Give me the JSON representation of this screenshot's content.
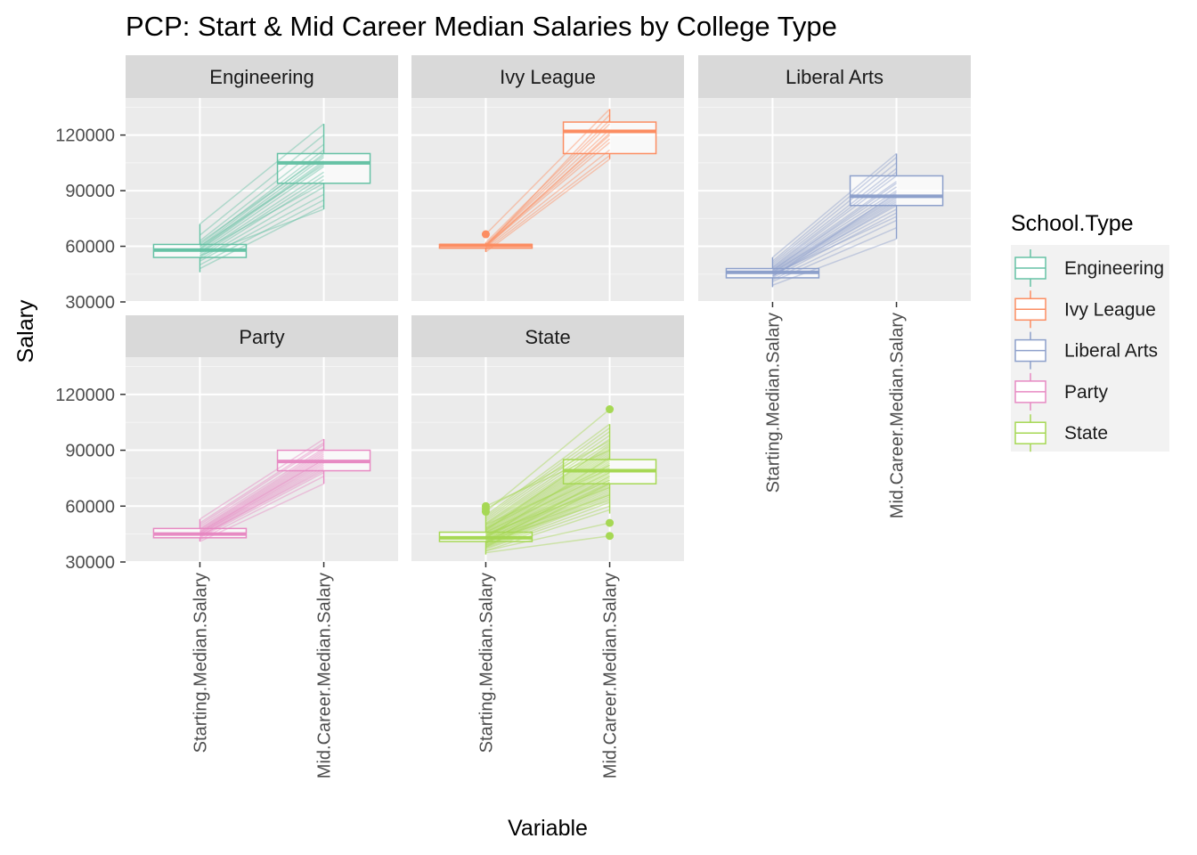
{
  "chart_data": {
    "type": "boxplot-parallel-coordinates",
    "title": "PCP: Start & Mid Career Median Salaries by College Type",
    "xlabel": "Variable",
    "ylabel": "Salary",
    "categories": [
      "Starting.Median.Salary",
      "Mid.Career.Median.Salary"
    ],
    "y_ticks": [
      30000,
      60000,
      90000,
      120000
    ],
    "ylim": [
      30000,
      140000
    ],
    "legend": {
      "title": "School.Type",
      "position": "right",
      "items": [
        {
          "label": "Engineering",
          "color": "#66C2A5"
        },
        {
          "label": "Ivy League",
          "color": "#FC8D62"
        },
        {
          "label": "Liberal Arts",
          "color": "#8DA0CB"
        },
        {
          "label": "Party",
          "color": "#E78AC3"
        },
        {
          "label": "State",
          "color": "#A6D854"
        }
      ]
    },
    "facets": [
      {
        "name": "Engineering",
        "color": "#66C2A5",
        "boxes": [
          {
            "q1": 54000,
            "median": 58000,
            "q3": 61000,
            "low": 46000,
            "high": 72000,
            "outliers": []
          },
          {
            "q1": 94000,
            "median": 105000,
            "q3": 110000,
            "low": 80000,
            "high": 126000,
            "outliers": []
          }
        ],
        "lines": [
          [
            48000,
            82000
          ],
          [
            50000,
            85000
          ],
          [
            52000,
            88000
          ],
          [
            53000,
            92000
          ],
          [
            54000,
            96000
          ],
          [
            55000,
            98000
          ],
          [
            56000,
            100000
          ],
          [
            57000,
            103000
          ],
          [
            58000,
            105000
          ],
          [
            58500,
            106000
          ],
          [
            59000,
            108000
          ],
          [
            60000,
            110000
          ],
          [
            61000,
            112000
          ],
          [
            63000,
            115000
          ],
          [
            66000,
            120000
          ],
          [
            72000,
            126000
          ],
          [
            55000,
            80000
          ],
          [
            57000,
            94000
          ],
          [
            60000,
            104000
          ],
          [
            62000,
            109000
          ]
        ]
      },
      {
        "name": "Ivy League",
        "color": "#FC8D62",
        "boxes": [
          {
            "q1": 59000,
            "median": 60500,
            "q3": 61000,
            "low": 57000,
            "high": 62000,
            "outliers": [
              66500
            ]
          },
          {
            "q1": 110000,
            "median": 122000,
            "q3": 127000,
            "low": 107000,
            "high": 134000,
            "outliers": []
          }
        ],
        "lines": [
          [
            57000,
            107000
          ],
          [
            58000,
            109000
          ],
          [
            59000,
            112000
          ],
          [
            60000,
            116000
          ],
          [
            60500,
            120000
          ],
          [
            61000,
            123000
          ],
          [
            61000,
            126000
          ],
          [
            62000,
            128000
          ],
          [
            60000,
            131000
          ],
          [
            66500,
            134000
          ],
          [
            59500,
            121000
          ],
          [
            60500,
            118000
          ]
        ]
      },
      {
        "name": "Liberal Arts",
        "color": "#8DA0CB",
        "boxes": [
          {
            "q1": 43000,
            "median": 46000,
            "q3": 48000,
            "low": 38000,
            "high": 54000,
            "outliers": []
          },
          {
            "q1": 82000,
            "median": 87000,
            "q3": 98000,
            "low": 64000,
            "high": 110000,
            "outliers": []
          }
        ],
        "lines": [
          [
            39000,
            64000
          ],
          [
            41000,
            70000
          ],
          [
            42000,
            74000
          ],
          [
            43000,
            78000
          ],
          [
            44000,
            80000
          ],
          [
            44500,
            82000
          ],
          [
            45000,
            84000
          ],
          [
            45500,
            85000
          ],
          [
            46000,
            86000
          ],
          [
            46000,
            87000
          ],
          [
            46500,
            88000
          ],
          [
            47000,
            90000
          ],
          [
            47500,
            92000
          ],
          [
            48000,
            95000
          ],
          [
            48500,
            98000
          ],
          [
            49000,
            100000
          ],
          [
            50000,
            102000
          ],
          [
            51000,
            105000
          ],
          [
            52000,
            108000
          ],
          [
            54000,
            110000
          ],
          [
            45000,
            76000
          ],
          [
            43500,
            89000
          ],
          [
            47000,
            94000
          ],
          [
            44000,
            83000
          ]
        ]
      },
      {
        "name": "Party",
        "color": "#E78AC3",
        "boxes": [
          {
            "q1": 43000,
            "median": 45000,
            "q3": 48000,
            "low": 41000,
            "high": 53000,
            "outliers": []
          },
          {
            "q1": 79000,
            "median": 84000,
            "q3": 90000,
            "low": 72000,
            "high": 96000,
            "outliers": []
          }
        ],
        "lines": [
          [
            41000,
            72000
          ],
          [
            42000,
            76000
          ],
          [
            43000,
            78000
          ],
          [
            43500,
            80000
          ],
          [
            44000,
            81000
          ],
          [
            44500,
            82000
          ],
          [
            45000,
            83000
          ],
          [
            45000,
            84000
          ],
          [
            45500,
            85000
          ],
          [
            46000,
            86000
          ],
          [
            46500,
            87000
          ],
          [
            47000,
            88000
          ],
          [
            47500,
            89000
          ],
          [
            48000,
            90000
          ],
          [
            49000,
            91000
          ],
          [
            50000,
            93000
          ],
          [
            51000,
            94000
          ],
          [
            53000,
            96000
          ],
          [
            44000,
            79000
          ],
          [
            46000,
            85000
          ]
        ]
      },
      {
        "name": "State",
        "color": "#A6D854",
        "boxes": [
          {
            "q1": 41000,
            "median": 43000,
            "q3": 46000,
            "low": 34000,
            "high": 55000,
            "outliers": [
              57000,
              58500,
              60000
            ]
          },
          {
            "q1": 72000,
            "median": 79000,
            "q3": 85000,
            "low": 56000,
            "high": 104000,
            "outliers": [
              112000,
              51000,
              44000
            ]
          }
        ],
        "lines": [
          [
            35000,
            44000
          ],
          [
            36000,
            51000
          ],
          [
            36000,
            58000
          ],
          [
            37000,
            60000
          ],
          [
            37500,
            62000
          ],
          [
            38000,
            64000
          ],
          [
            38500,
            65000
          ],
          [
            39000,
            66000
          ],
          [
            39000,
            67000
          ],
          [
            39500,
            68000
          ],
          [
            40000,
            69000
          ],
          [
            40000,
            70000
          ],
          [
            40500,
            71000
          ],
          [
            41000,
            72000
          ],
          [
            41000,
            72500
          ],
          [
            41500,
            73000
          ],
          [
            42000,
            74000
          ],
          [
            42000,
            75000
          ],
          [
            42500,
            76000
          ],
          [
            43000,
            77000
          ],
          [
            43000,
            78000
          ],
          [
            43500,
            79000
          ],
          [
            44000,
            80000
          ],
          [
            44000,
            81000
          ],
          [
            44500,
            82000
          ],
          [
            45000,
            83000
          ],
          [
            45500,
            84000
          ],
          [
            46000,
            85000
          ],
          [
            46500,
            86000
          ],
          [
            47000,
            87000
          ],
          [
            47500,
            88000
          ],
          [
            48000,
            89000
          ],
          [
            48500,
            90000
          ],
          [
            49000,
            91000
          ],
          [
            50000,
            92000
          ],
          [
            50500,
            94000
          ],
          [
            51000,
            96000
          ],
          [
            52000,
            98000
          ],
          [
            53000,
            100000
          ],
          [
            54000,
            102000
          ],
          [
            55000,
            104000
          ],
          [
            57000,
            112000
          ],
          [
            58500,
            95000
          ],
          [
            60000,
            90000
          ],
          [
            45000,
            70000
          ],
          [
            42000,
            66000
          ],
          [
            46000,
            78000
          ],
          [
            44000,
            74000
          ],
          [
            40000,
            76000
          ],
          [
            48000,
            82000
          ],
          [
            38000,
            72000
          ],
          [
            43000,
            86000
          ],
          [
            47000,
            93000
          ],
          [
            41000,
            63000
          ],
          [
            50000,
            80000
          ]
        ]
      }
    ]
  }
}
